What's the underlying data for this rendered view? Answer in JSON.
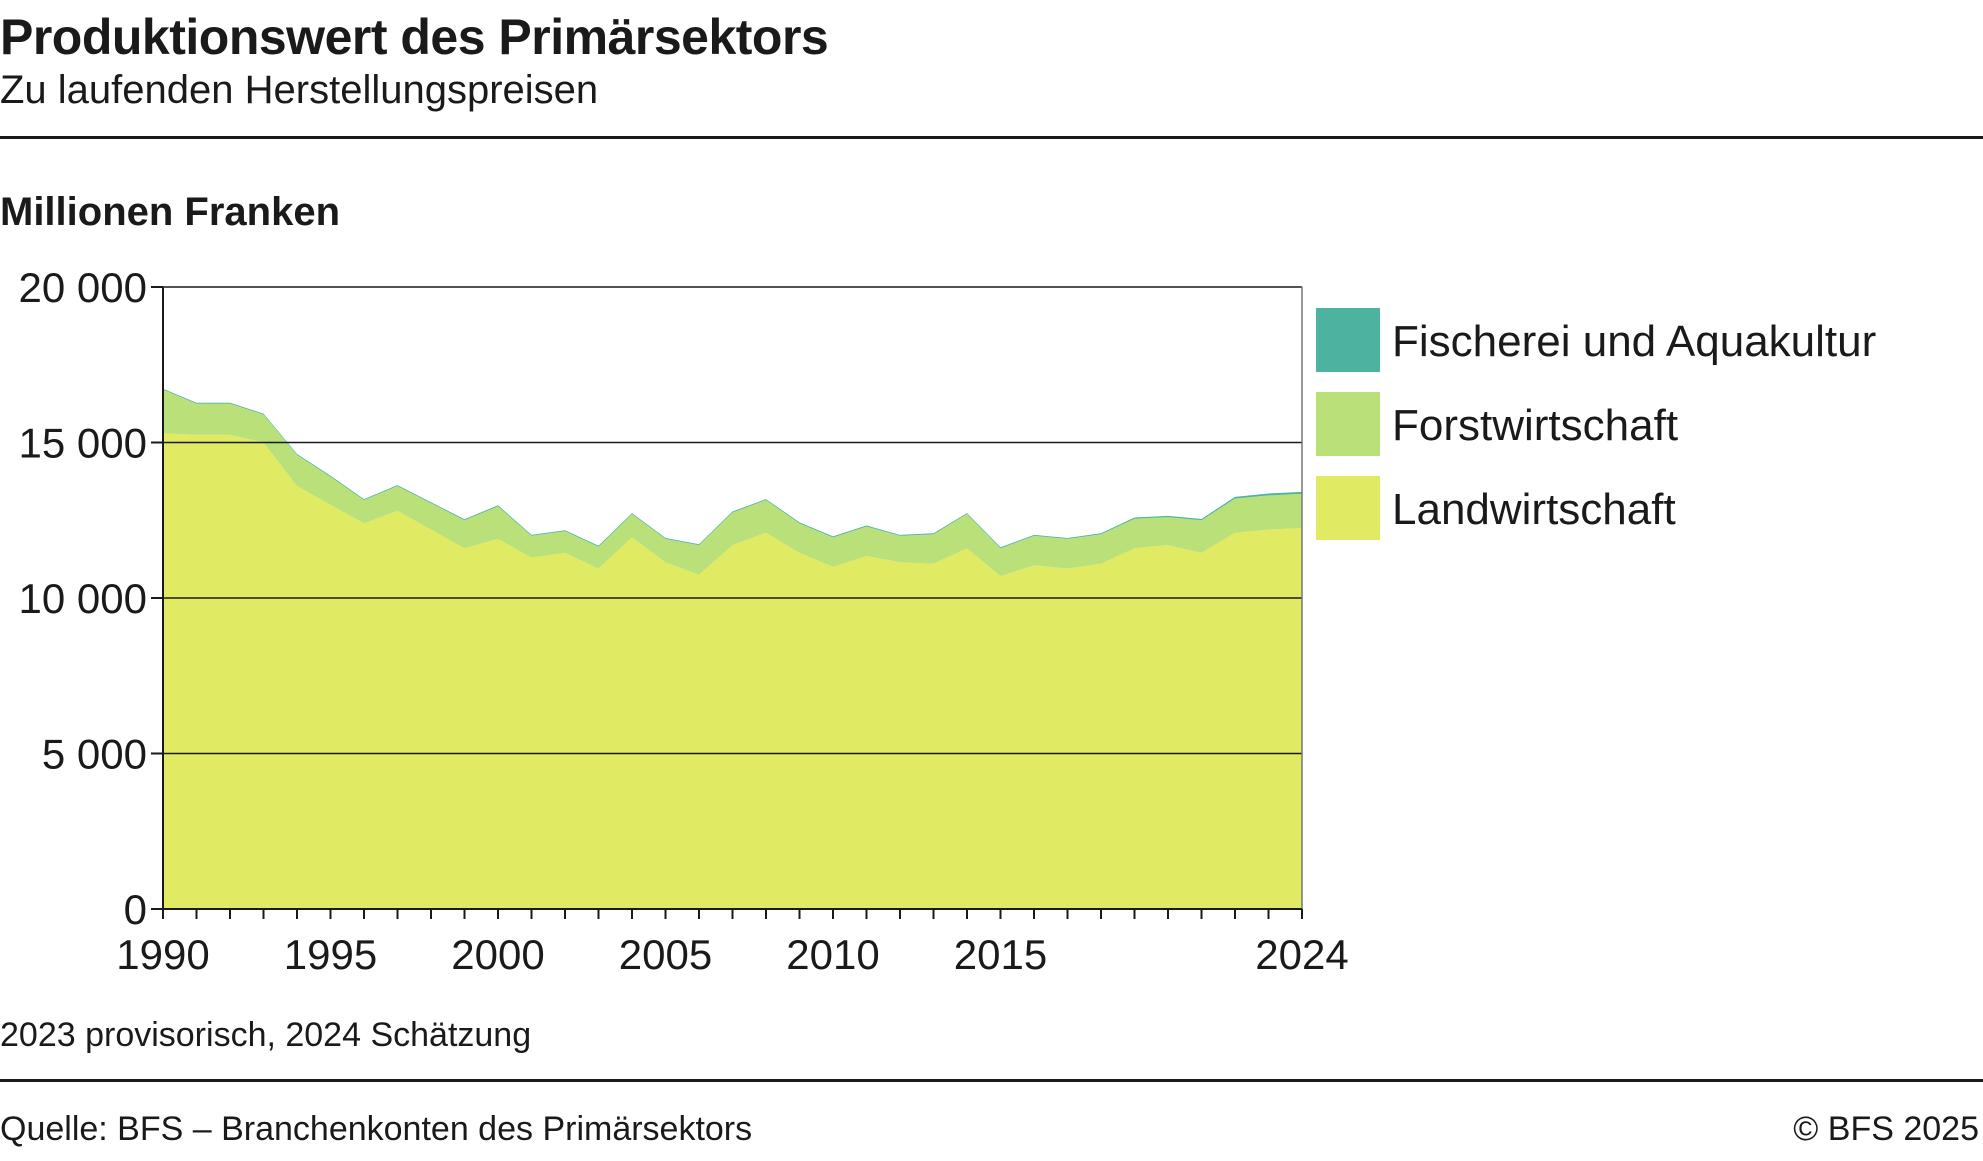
{
  "header": {
    "title": "Produktionswert des Primärsektors",
    "subtitle": "Zu laufenden Herstellungspreisen"
  },
  "unit_label": "Millionen Franken",
  "footer": {
    "note": "2023 provisorisch, 2024 Schätzung",
    "source": "Quelle: BFS – Branchenkonten des Primärsektors",
    "copyright": "© BFS 2025"
  },
  "colors": {
    "Landwirtschaft": "#e0ea63",
    "Forstwirtschaft": "#b9e079",
    "Fischerei und Aquakultur": "#4db3a0",
    "axis": "#1a1a1a",
    "grid": "#1a1a1a"
  },
  "chart_data": {
    "type": "area",
    "stacked": true,
    "ylabel": "Millionen Franken",
    "ylim": [
      0,
      20000
    ],
    "xlim": [
      1990,
      2024
    ],
    "yticks": [
      0,
      5000,
      10000,
      15000,
      20000
    ],
    "ytick_labels": [
      "0",
      "5 000",
      "10 000",
      "15 000",
      "20 000"
    ],
    "xtick_labels": [
      "1990",
      "1995",
      "2000",
      "2005",
      "2010",
      "2015",
      "2024"
    ],
    "grid": true,
    "legend_position": "right",
    "x": [
      1990,
      1991,
      1992,
      1993,
      1994,
      1995,
      1996,
      1997,
      1998,
      1999,
      2000,
      2001,
      2002,
      2003,
      2004,
      2005,
      2006,
      2007,
      2008,
      2009,
      2010,
      2011,
      2012,
      2013,
      2014,
      2015,
      2016,
      2017,
      2018,
      2019,
      2020,
      2021,
      2022,
      2023,
      2024
    ],
    "series": [
      {
        "name": "Landwirtschaft",
        "values": [
          15300,
          15250,
          15250,
          15000,
          13600,
          13000,
          12400,
          12800,
          12200,
          11600,
          11900,
          11300,
          11450,
          10950,
          11950,
          11150,
          10750,
          11700,
          12100,
          11450,
          11000,
          11350,
          11150,
          11100,
          11600,
          10700,
          11050,
          10950,
          11100,
          11600,
          11700,
          11450,
          12100,
          12200,
          12250
        ]
      },
      {
        "name": "Forstwirtschaft",
        "values": [
          1400,
          1000,
          1000,
          900,
          1000,
          900,
          750,
          800,
          850,
          900,
          1050,
          700,
          700,
          700,
          750,
          750,
          950,
          1050,
          1050,
          950,
          950,
          950,
          850,
          950,
          1100,
          900,
          950,
          950,
          950,
          950,
          900,
          1050,
          1100,
          1100,
          1100
        ]
      },
      {
        "name": "Fischerei und Aquakultur",
        "values": [
          30,
          30,
          30,
          30,
          30,
          30,
          30,
          30,
          30,
          30,
          30,
          30,
          30,
          30,
          30,
          30,
          30,
          30,
          30,
          30,
          30,
          30,
          30,
          30,
          30,
          30,
          30,
          30,
          30,
          40,
          40,
          40,
          50,
          60,
          60
        ]
      }
    ]
  }
}
